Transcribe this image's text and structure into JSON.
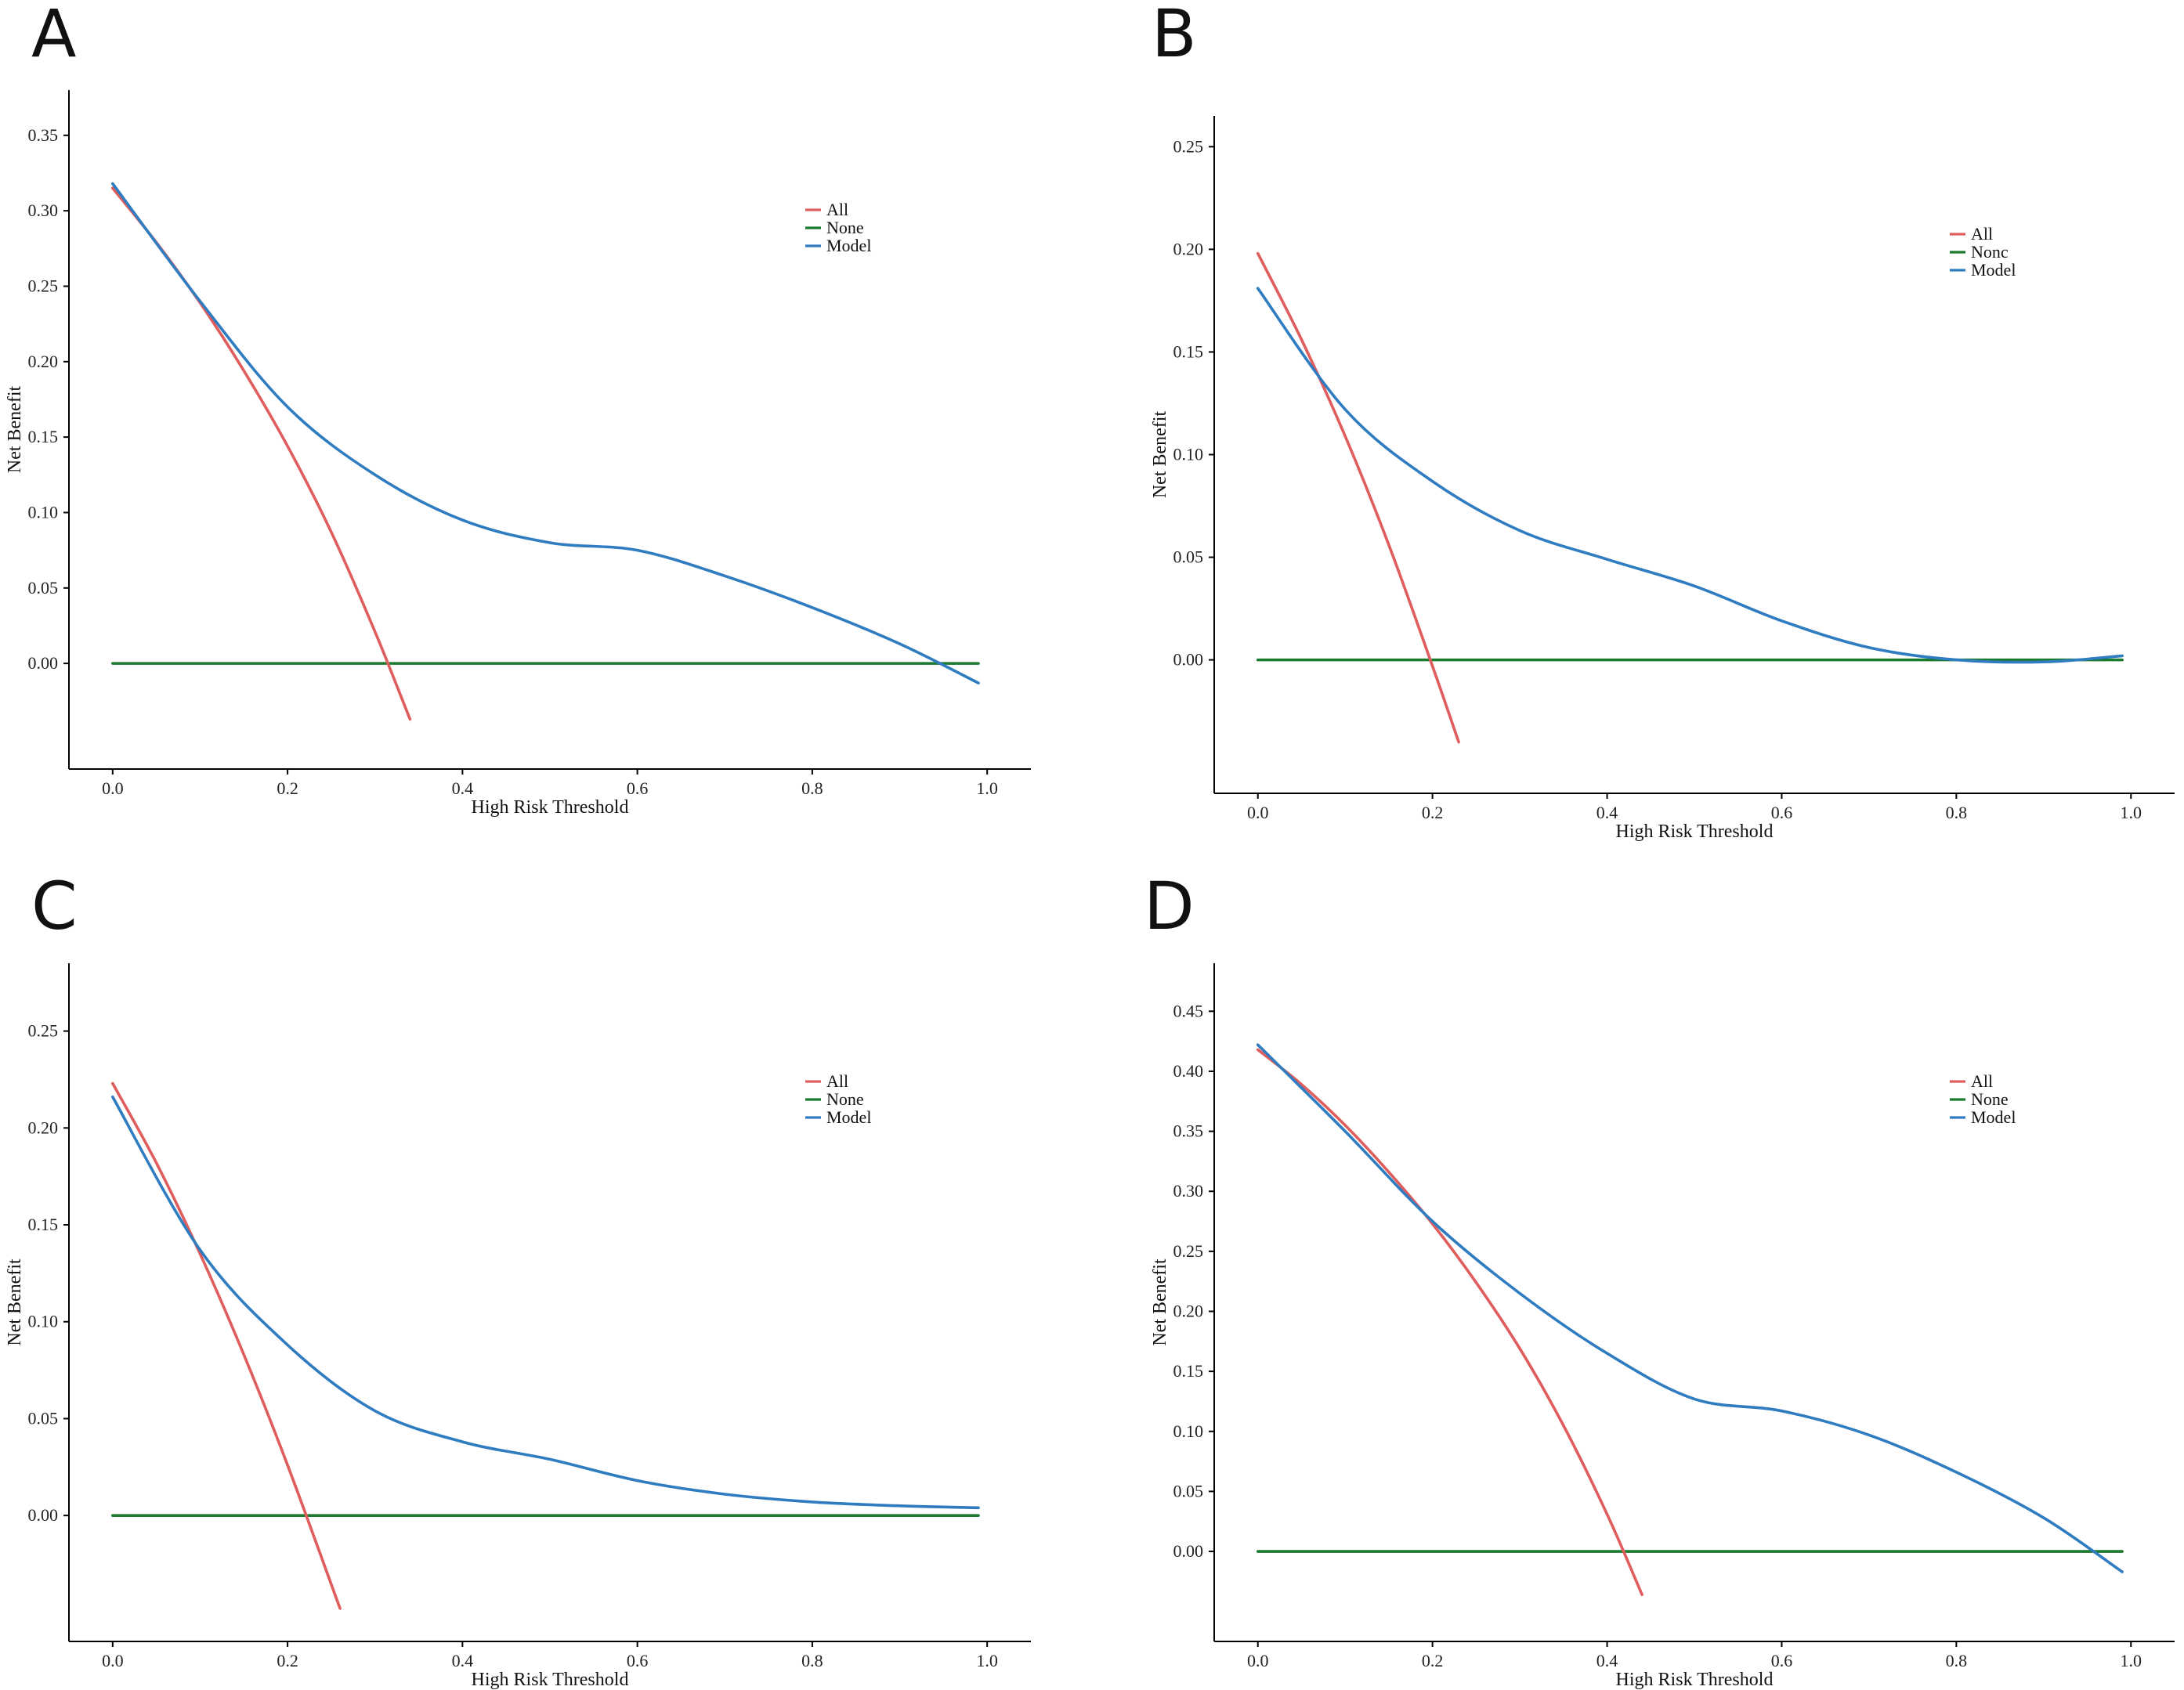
{
  "chart_data": [
    {
      "panel": "A",
      "type": "line",
      "xlabel": "High Risk Threshold",
      "ylabel": "Net Benefit",
      "xlim": [
        -0.05,
        1.05
      ],
      "ylim": [
        -0.07,
        0.38
      ],
      "xticks": [
        0.0,
        0.2,
        0.4,
        0.6,
        0.8,
        1.0
      ],
      "xtick_labels": [
        "0.0",
        "0.2",
        "0.4",
        "0.6",
        "0.8",
        "1.0"
      ],
      "yticks": [
        0.0,
        0.05,
        0.1,
        0.15,
        0.2,
        0.25,
        0.3,
        0.35
      ],
      "ytick_labels": [
        "0.00",
        "0.05",
        "0.10",
        "0.15",
        "0.20",
        "0.25",
        "0.30",
        "0.35"
      ],
      "legend": [
        "All",
        "None",
        "Model"
      ],
      "series": [
        {
          "name": "All",
          "color": "#e05d5d",
          "x": [
            0,
            0.05,
            0.1,
            0.15,
            0.2,
            0.25,
            0.3,
            0.34
          ],
          "y": [
            0.315,
            0.279,
            0.239,
            0.194,
            0.144,
            0.087,
            0.021,
            -0.037
          ]
        },
        {
          "name": "None",
          "color": "#1a7a2e",
          "x": [
            0,
            0.99
          ],
          "y": [
            0,
            0
          ]
        },
        {
          "name": "Model",
          "color": "#2f7cc0",
          "x": [
            0,
            0.1,
            0.2,
            0.3,
            0.4,
            0.5,
            0.6,
            0.7,
            0.8,
            0.9,
            0.99
          ],
          "y": [
            0.318,
            0.24,
            0.17,
            0.125,
            0.095,
            0.08,
            0.075,
            0.058,
            0.037,
            0.013,
            -0.013
          ]
        }
      ]
    },
    {
      "panel": "B",
      "type": "line",
      "xlabel": "High Risk Threshold",
      "ylabel": "Net Benefit",
      "xlim": [
        -0.05,
        1.05
      ],
      "ylim": [
        -0.065,
        0.265
      ],
      "xticks": [
        0.0,
        0.2,
        0.4,
        0.6,
        0.8,
        1.0
      ],
      "xtick_labels": [
        "0.0",
        "0.2",
        "0.4",
        "0.6",
        "0.8",
        "1.0"
      ],
      "yticks": [
        0.0,
        0.05,
        0.1,
        0.15,
        0.2,
        0.25
      ],
      "ytick_labels": [
        "0.00",
        "0.05",
        "0.10",
        "0.15",
        "0.20",
        "0.25"
      ],
      "legend": [
        "All",
        "Nonc",
        "Model"
      ],
      "series": [
        {
          "name": "All",
          "color": "#e05d5d",
          "x": [
            0,
            0.05,
            0.1,
            0.15,
            0.2,
            0.23
          ],
          "y": [
            0.198,
            0.156,
            0.109,
            0.056,
            -0.003,
            -0.04
          ]
        },
        {
          "name": "Nonc",
          "color": "#1a7a2e",
          "x": [
            0,
            0.99
          ],
          "y": [
            0,
            0
          ]
        },
        {
          "name": "Model",
          "color": "#2f7cc0",
          "x": [
            0,
            0.1,
            0.2,
            0.3,
            0.4,
            0.5,
            0.6,
            0.7,
            0.8,
            0.9,
            0.99
          ],
          "y": [
            0.181,
            0.122,
            0.087,
            0.063,
            0.049,
            0.036,
            0.019,
            0.006,
            0.0,
            -0.001,
            0.002
          ]
        }
      ]
    },
    {
      "panel": "C",
      "type": "line",
      "xlabel": "High Risk Threshold",
      "ylabel": "Net Benefit",
      "xlim": [
        -0.05,
        1.05
      ],
      "ylim": [
        -0.065,
        0.285
      ],
      "xticks": [
        0.0,
        0.2,
        0.4,
        0.6,
        0.8,
        1.0
      ],
      "xtick_labels": [
        "0.0",
        "0.2",
        "0.4",
        "0.6",
        "0.8",
        "1.0"
      ],
      "yticks": [
        0.0,
        0.05,
        0.1,
        0.15,
        0.2,
        0.25
      ],
      "ytick_labels": [
        "0.00",
        "0.05",
        "0.10",
        "0.15",
        "0.20",
        "0.25"
      ],
      "legend": [
        "All",
        "None",
        "Model"
      ],
      "series": [
        {
          "name": "All",
          "color": "#e05d5d",
          "x": [
            0,
            0.05,
            0.1,
            0.15,
            0.2,
            0.26
          ],
          "y": [
            0.223,
            0.182,
            0.135,
            0.083,
            0.026,
            -0.048
          ]
        },
        {
          "name": "None",
          "color": "#1a7a2e",
          "x": [
            0,
            0.99
          ],
          "y": [
            0,
            0
          ]
        },
        {
          "name": "Model",
          "color": "#2f7cc0",
          "x": [
            0,
            0.1,
            0.2,
            0.3,
            0.4,
            0.5,
            0.6,
            0.7,
            0.8,
            0.9,
            0.99
          ],
          "y": [
            0.216,
            0.137,
            0.088,
            0.054,
            0.038,
            0.029,
            0.018,
            0.011,
            0.007,
            0.005,
            0.004
          ]
        }
      ]
    },
    {
      "panel": "D",
      "type": "line",
      "xlabel": "High Risk Threshold",
      "ylabel": "Net Benefit",
      "xlim": [
        -0.05,
        1.05
      ],
      "ylim": [
        -0.075,
        0.49
      ],
      "xticks": [
        0.0,
        0.2,
        0.4,
        0.6,
        0.8,
        1.0
      ],
      "xtick_labels": [
        "0.0",
        "0.2",
        "0.4",
        "0.6",
        "0.8",
        "1.0"
      ],
      "yticks": [
        0.0,
        0.05,
        0.1,
        0.15,
        0.2,
        0.25,
        0.3,
        0.35,
        0.4,
        0.45
      ],
      "ytick_labels": [
        "0.00",
        "0.05",
        "0.10",
        "0.15",
        "0.20",
        "0.25",
        "0.30",
        "0.35",
        "0.40",
        "0.45"
      ],
      "legend": [
        "All",
        "None",
        "Model"
      ],
      "series": [
        {
          "name": "All",
          "color": "#e05d5d",
          "x": [
            0,
            0.05,
            0.1,
            0.15,
            0.2,
            0.25,
            0.3,
            0.35,
            0.4,
            0.44
          ],
          "y": [
            0.418,
            0.389,
            0.355,
            0.316,
            0.273,
            0.224,
            0.169,
            0.105,
            0.031,
            -0.036
          ]
        },
        {
          "name": "None",
          "color": "#1a7a2e",
          "x": [
            0,
            0.99
          ],
          "y": [
            0,
            0
          ]
        },
        {
          "name": "Model",
          "color": "#2f7cc0",
          "x": [
            0,
            0.1,
            0.2,
            0.3,
            0.4,
            0.5,
            0.6,
            0.7,
            0.8,
            0.9,
            0.99
          ],
          "y": [
            0.422,
            0.35,
            0.275,
            0.215,
            0.165,
            0.127,
            0.117,
            0.097,
            0.066,
            0.028,
            -0.017
          ]
        }
      ]
    }
  ]
}
